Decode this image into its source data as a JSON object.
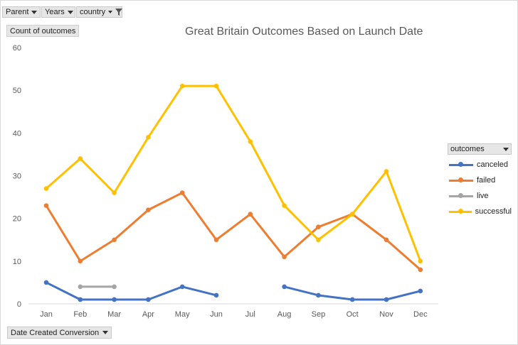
{
  "filters": {
    "parent": "Parent",
    "years": "Years",
    "country": "country"
  },
  "axis_button": "Count of outcomes",
  "x_axis_button": "Date Created Conversion",
  "legend_title": "outcomes",
  "chart_data": {
    "type": "line",
    "title": "Great Britain Outcomes Based on Launch Date",
    "xlabel": "",
    "ylabel": "Count of outcomes",
    "ylim": [
      0,
      60
    ],
    "yticks": [
      0,
      10,
      20,
      30,
      40,
      50,
      60
    ],
    "grid": false,
    "legend": "right",
    "categories": [
      "Jan",
      "Feb",
      "Mar",
      "Apr",
      "May",
      "Jun",
      "Jul",
      "Aug",
      "Sep",
      "Oct",
      "Nov",
      "Dec"
    ],
    "series": [
      {
        "name": "canceled",
        "color": "#4472c4",
        "values": [
          5,
          1,
          1,
          1,
          4,
          2,
          null,
          4,
          2,
          1,
          1,
          3
        ]
      },
      {
        "name": "failed",
        "color": "#ed7d31",
        "values": [
          23,
          10,
          15,
          22,
          26,
          15,
          21,
          11,
          18,
          21,
          15,
          8
        ]
      },
      {
        "name": "live",
        "color": "#a5a5a5",
        "values": [
          null,
          4,
          4,
          null,
          null,
          null,
          null,
          null,
          null,
          null,
          null,
          null
        ]
      },
      {
        "name": "successful",
        "color": "#ffc000",
        "values": [
          27,
          34,
          26,
          39,
          51,
          51,
          38,
          23,
          15,
          21,
          31,
          10
        ]
      }
    ]
  }
}
